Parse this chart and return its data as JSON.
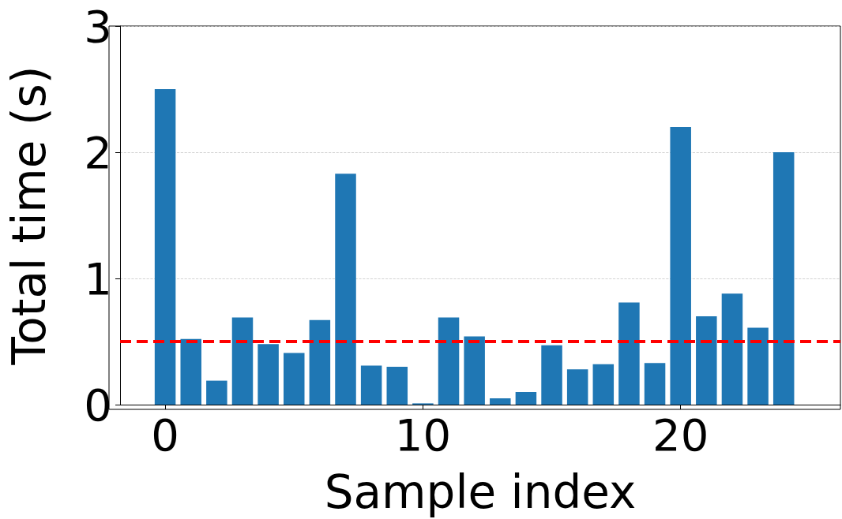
{
  "chart_data": {
    "type": "bar",
    "xlabel": "Sample index",
    "ylabel": "Total time (s)",
    "x": [
      0,
      1,
      2,
      3,
      4,
      5,
      6,
      7,
      8,
      9,
      10,
      11,
      12,
      13,
      14,
      15,
      16,
      17,
      18,
      19,
      20,
      21,
      22,
      23,
      24
    ],
    "values": [
      2.5,
      0.52,
      0.19,
      0.69,
      0.48,
      0.41,
      0.67,
      1.83,
      0.31,
      0.3,
      0.01,
      0.69,
      0.54,
      0.05,
      0.1,
      0.47,
      0.28,
      0.32,
      0.81,
      0.33,
      2.2,
      0.7,
      0.88,
      0.61,
      2.0
    ],
    "color": "#1f77b4",
    "xlim": [
      -1.75,
      26.2
    ],
    "xticks": [
      0,
      10,
      20
    ],
    "ylim": [
      0,
      3
    ],
    "yticks": [
      0,
      1,
      2,
      3
    ],
    "grid": "y",
    "ref_lines": [
      {
        "axis": "y",
        "value": 0.5,
        "color": "#ff0000",
        "line_style": "dashed"
      }
    ]
  }
}
